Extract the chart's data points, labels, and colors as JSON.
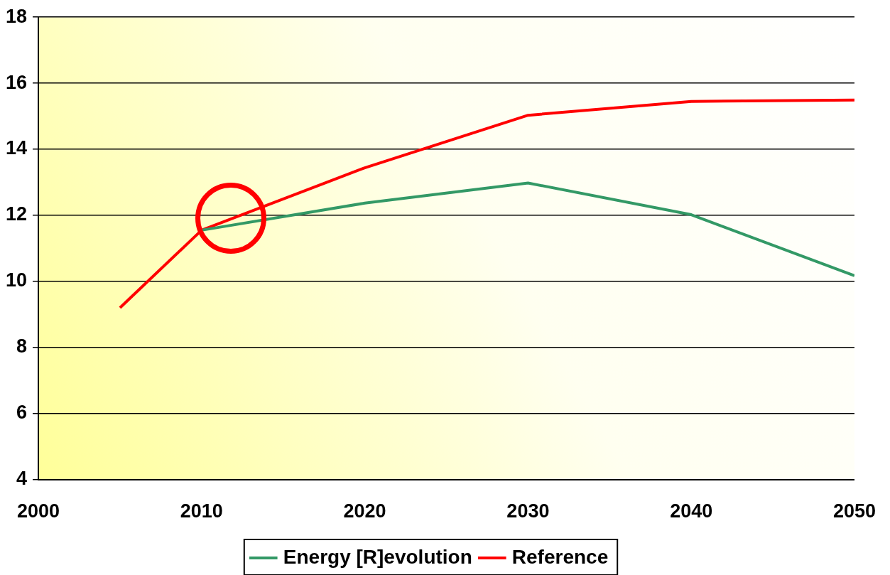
{
  "chart_data": {
    "type": "line",
    "x": [
      2005,
      2010,
      2020,
      2030,
      2040,
      2050
    ],
    "series": [
      {
        "name": "Energy [R]evolution",
        "color": "#339966",
        "x": [
          2010,
          2020,
          2030,
          2040,
          2050
        ],
        "values": [
          11.55,
          12.37,
          12.98,
          12.02,
          10.17
        ]
      },
      {
        "name": "Reference",
        "color": "#ff0000",
        "values": [
          9.2,
          11.55,
          13.44,
          15.03,
          15.45,
          15.49
        ]
      }
    ],
    "xlim": [
      2000,
      2050
    ],
    "xticks": [
      2000,
      2010,
      2020,
      2030,
      2040,
      2050
    ],
    "ylim": [
      4,
      18
    ],
    "yticks": [
      4,
      6,
      8,
      10,
      12,
      14,
      16,
      18
    ],
    "grid": "y",
    "legend": "bottom",
    "marker": "none",
    "line_style": "solid"
  }
}
